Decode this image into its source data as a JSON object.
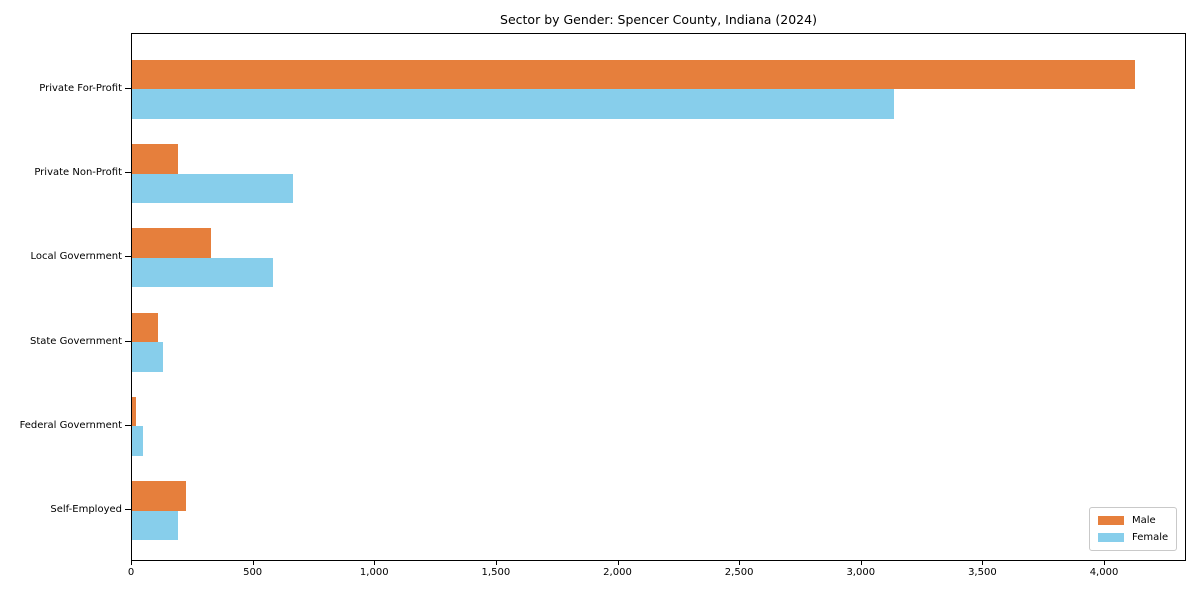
{
  "title": "Sector by Gender: Spencer County, Indiana (2024)",
  "chart_data": {
    "type": "bar",
    "orientation": "horizontal",
    "title": "Sector by Gender: Spencer County, Indiana (2024)",
    "xlabel": "",
    "ylabel": "",
    "grid": false,
    "legend_position": "lower right",
    "categories": [
      "Private For-Profit",
      "Private Non-Profit",
      "Local Government",
      "State Government",
      "Federal Government",
      "Self-Employed"
    ],
    "series": [
      {
        "name": "Male",
        "color": "#e67f3c",
        "values": [
          4124,
          189,
          326,
          107,
          18,
          223
        ]
      },
      {
        "name": "Female",
        "color": "#87ceeb",
        "values": [
          3131,
          661,
          580,
          128,
          45,
          188
        ]
      }
    ],
    "xlim": [
      0,
      4337
    ],
    "x_ticks": [
      0,
      500,
      1000,
      1500,
      2000,
      2500,
      3000,
      3500,
      4000
    ],
    "x_tick_labels": [
      "0",
      "500",
      "1,000",
      "1,500",
      "2,000",
      "2,500",
      "3,000",
      "3,500",
      "4,000"
    ],
    "colors": {
      "axis": "#000000",
      "legend_border": "#c9c9c9",
      "background": "#ffffff"
    }
  }
}
